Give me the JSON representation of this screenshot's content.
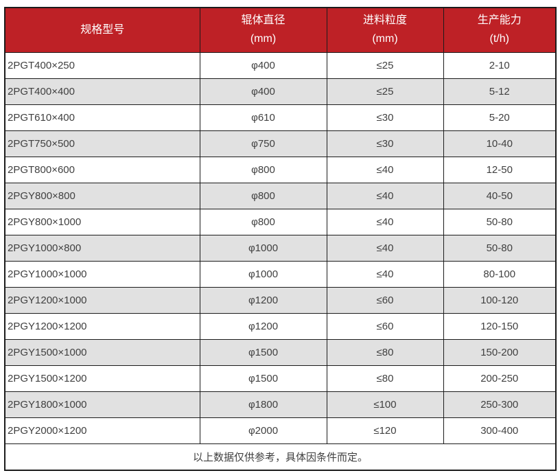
{
  "colors": {
    "header_bg": "#be2126",
    "header_text": "#ffffff",
    "row_bg": "#ffffff",
    "row_alt_bg": "#e1e1e1",
    "body_text": "#404040",
    "border": "#1b1b1b"
  },
  "table": {
    "columns": [
      {
        "title": "规格型号",
        "unit": ""
      },
      {
        "title": "辊体直径",
        "unit": "(mm)"
      },
      {
        "title": "进料粒度",
        "unit": "(mm)"
      },
      {
        "title": "生产能力",
        "unit": "(t/h)"
      }
    ],
    "rows": [
      [
        "2PGT400×250",
        "φ400",
        "≤25",
        "2-10"
      ],
      [
        "2PGT400×400",
        "φ400",
        "≤25",
        "5-12"
      ],
      [
        "2PGT610×400",
        "φ610",
        "≤30",
        "5-20"
      ],
      [
        "2PGT750×500",
        "φ750",
        "≤30",
        "10-40"
      ],
      [
        "2PGT800×600",
        "φ800",
        "≤40",
        "12-50"
      ],
      [
        "2PGY800×800",
        "φ800",
        "≤40",
        "40-50"
      ],
      [
        "2PGY800×1000",
        "φ800",
        "≤40",
        "50-80"
      ],
      [
        "2PGY1000×800",
        "φ1000",
        "≤40",
        "50-80"
      ],
      [
        "2PGY1000×1000",
        "φ1000",
        "≤40",
        "80-100"
      ],
      [
        "2PGY1200×1000",
        "φ1200",
        "≤60",
        "100-120"
      ],
      [
        "2PGY1200×1200",
        "φ1200",
        "≤60",
        "120-150"
      ],
      [
        "2PGY1500×1000",
        "φ1500",
        "≤80",
        "150-200"
      ],
      [
        "2PGY1500×1200",
        "φ1500",
        "≤80",
        "200-250"
      ],
      [
        "2PGY1800×1000",
        "φ1800",
        "≤100",
        "250-300"
      ],
      [
        "2PGY2000×1200",
        "φ2000",
        "≤120",
        "300-400"
      ]
    ],
    "footer_note": "以上数据仅供参考，具体因条件而定。"
  },
  "chart_data": {
    "type": "table",
    "title": "",
    "categories": [
      "规格型号",
      "辊体直径 (mm)",
      "进料粒度 (mm)",
      "生产能力 (t/h)"
    ],
    "series": [
      {
        "name": "规格型号",
        "values": [
          "2PGT400×250",
          "2PGT400×400",
          "2PGT610×400",
          "2PGT750×500",
          "2PGT800×600",
          "2PGY800×800",
          "2PGY800×1000",
          "2PGY1000×800",
          "2PGY1000×1000",
          "2PGY1200×1000",
          "2PGY1200×1200",
          "2PGY1500×1000",
          "2PGY1500×1200",
          "2PGY1800×1000",
          "2PGY2000×1200"
        ]
      },
      {
        "name": "辊体直径 (mm)",
        "values": [
          "φ400",
          "φ400",
          "φ610",
          "φ750",
          "φ800",
          "φ800",
          "φ800",
          "φ1000",
          "φ1000",
          "φ1200",
          "φ1200",
          "φ1500",
          "φ1500",
          "φ1800",
          "φ2000"
        ]
      },
      {
        "name": "进料粒度 (mm)",
        "values": [
          "≤25",
          "≤25",
          "≤30",
          "≤30",
          "≤40",
          "≤40",
          "≤40",
          "≤40",
          "≤40",
          "≤60",
          "≤60",
          "≤80",
          "≤80",
          "≤100",
          "≤120"
        ]
      },
      {
        "name": "生产能力 (t/h)",
        "values": [
          "2-10",
          "5-12",
          "5-20",
          "10-40",
          "12-50",
          "40-50",
          "50-80",
          "50-80",
          "80-100",
          "100-120",
          "120-150",
          "150-200",
          "200-250",
          "250-300",
          "300-400"
        ]
      }
    ]
  }
}
